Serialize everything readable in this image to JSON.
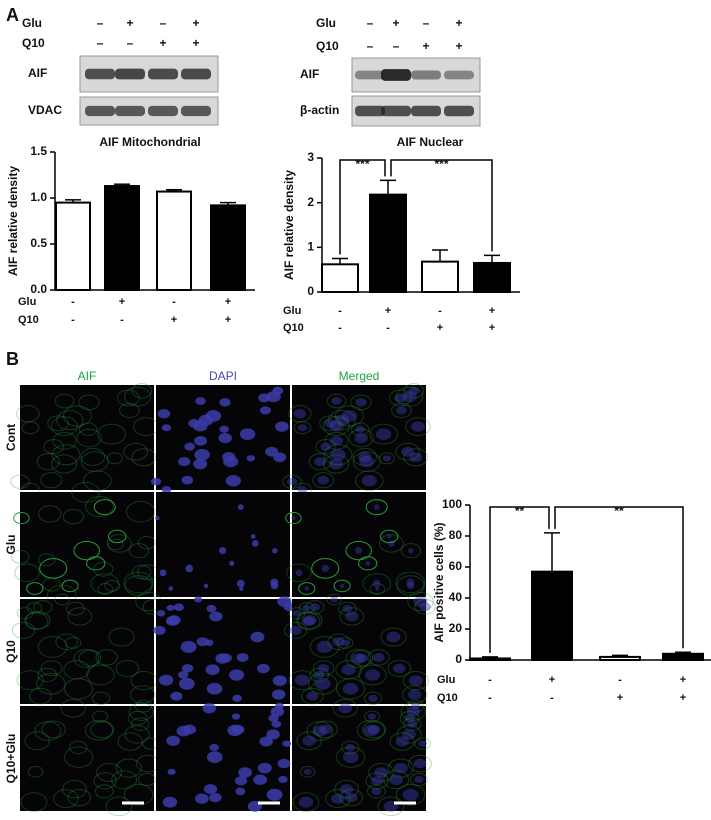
{
  "panels": {
    "a": "A",
    "b": "B"
  },
  "blots": [
    {
      "conditions": [
        {
          "name": "Glu",
          "signs": [
            "–",
            "+",
            "–",
            "+"
          ]
        },
        {
          "name": "Q10",
          "signs": [
            "–",
            "–",
            "+",
            "+"
          ]
        }
      ],
      "rows": [
        "AIF",
        "VDAC"
      ]
    },
    {
      "conditions": [
        {
          "name": "Glu",
          "signs": [
            "–",
            "+",
            "–",
            "+"
          ]
        },
        {
          "name": "Q10",
          "signs": [
            "–",
            "–",
            "+",
            "+"
          ]
        }
      ],
      "rows": [
        "AIF",
        "β-actin"
      ]
    }
  ],
  "micrographs": {
    "columns": [
      "AIF",
      "DAPI",
      "Merged"
    ],
    "rows": [
      "Cont",
      "Glu",
      "Q10",
      "Q10+Glu"
    ]
  },
  "chart_data": [
    {
      "type": "bar",
      "title": "AIF Mitochondrial",
      "y_label": "AIF relative density",
      "categories": [
        null,
        null,
        null,
        null
      ],
      "values": [
        0.95,
        1.13,
        1.07,
        0.92
      ],
      "errors": [
        0.03,
        0.02,
        0.02,
        0.03
      ],
      "colors": [
        "#ffffff",
        "#000000",
        "#ffffff",
        "#000000"
      ],
      "ylim": [
        0,
        1.5
      ],
      "yticks": [
        {
          "value": 0,
          "label": "0.0"
        },
        {
          "value": 0.5,
          "label": "0.5"
        },
        {
          "value": 1,
          "label": "1.0"
        },
        {
          "value": 1.5,
          "label": "1.5"
        }
      ],
      "conditions": [
        {
          "name": "Glu",
          "signs": [
            "-",
            "+",
            "-",
            "+"
          ]
        },
        {
          "name": "Q10",
          "signs": [
            "-",
            "-",
            "+",
            "+"
          ]
        }
      ]
    },
    {
      "type": "bar",
      "title": "AIF Nuclear",
      "y_label": "AIF relative density",
      "categories": [
        null,
        null,
        null,
        null
      ],
      "values": [
        0.62,
        2.18,
        0.68,
        0.65
      ],
      "errors": [
        0.13,
        0.32,
        0.26,
        0.17
      ],
      "colors": [
        "#ffffff",
        "#000000",
        "#ffffff",
        "#000000"
      ],
      "ylim": [
        0,
        3
      ],
      "yticks": [
        0,
        1,
        2,
        3
      ],
      "annotations": [
        "***",
        "***"
      ],
      "conditions": [
        {
          "name": "Glu",
          "signs": [
            "-",
            "+",
            "-",
            "+"
          ]
        },
        {
          "name": "Q10",
          "signs": [
            "-",
            "-",
            "+",
            "+"
          ]
        }
      ]
    },
    {
      "type": "bar",
      "y_label": "AIF positive cells (%)",
      "categories": [
        null,
        null,
        null,
        null
      ],
      "values": [
        1,
        57,
        2,
        4
      ],
      "errors": [
        1,
        25,
        1,
        1
      ],
      "colors": [
        "#ffffff",
        "#000000",
        "#ffffff",
        "#000000"
      ],
      "ylim": [
        0,
        100
      ],
      "yticks": [
        0,
        20,
        40,
        60,
        80,
        100
      ],
      "annotations": [
        "**",
        "**"
      ],
      "conditions": [
        {
          "name": "Glu",
          "signs": [
            "-",
            "+",
            "-",
            "+"
          ]
        },
        {
          "name": "Q10",
          "signs": [
            "-",
            "-",
            "+",
            "+"
          ]
        }
      ]
    }
  ]
}
